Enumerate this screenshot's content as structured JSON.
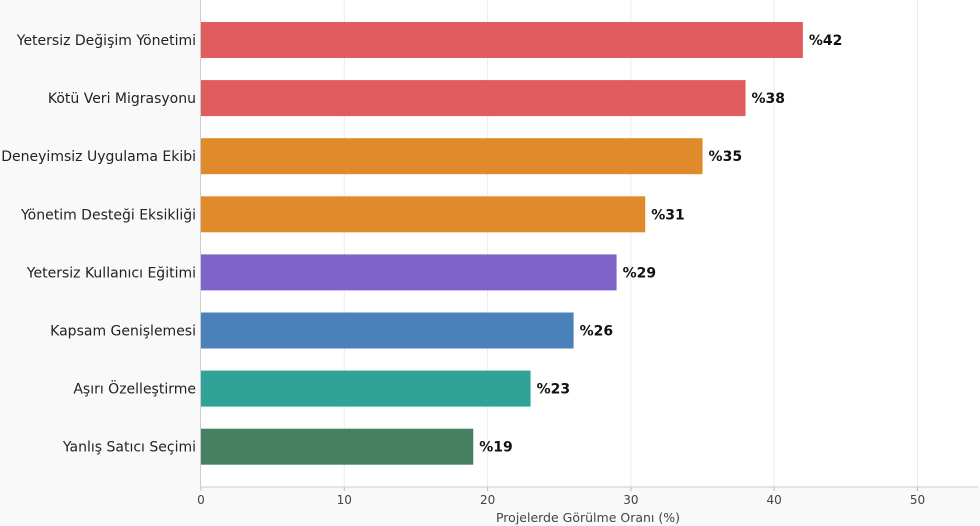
{
  "chart_data": {
    "type": "bar",
    "orientation": "horizontal",
    "categories": [
      "Yetersiz Değişim Yönetimi",
      "Kötü Veri Migrasyonu",
      "Deneyimsiz Uygulama Ekibi",
      "Yönetim Desteği Eksikliği",
      "Yetersiz Kullanıcı Eğitimi",
      "Kapsam Genişlemesi",
      "Aşırı Özelleştirme",
      "Yanlış Satıcı Seçimi"
    ],
    "values": [
      42,
      38,
      35,
      31,
      29,
      26,
      23,
      19
    ],
    "value_labels": [
      "%42",
      "%38",
      "%35",
      "%31",
      "%29",
      "%26",
      "%23",
      "%19"
    ],
    "colors": [
      "#e05c5f",
      "#e05c5f",
      "#df8a2b",
      "#df8a2b",
      "#8063c8",
      "#4a81bb",
      "#2fa398",
      "#467f62"
    ],
    "xlabel": "Projelerde Görülme Oranı (%)",
    "ylabel": "",
    "xlim": [
      0,
      54
    ],
    "xticks": [
      0,
      10,
      20,
      30,
      40,
      50
    ],
    "xtick_labels": [
      "0",
      "10",
      "20",
      "30",
      "40",
      "50"
    ],
    "grid": true
  }
}
